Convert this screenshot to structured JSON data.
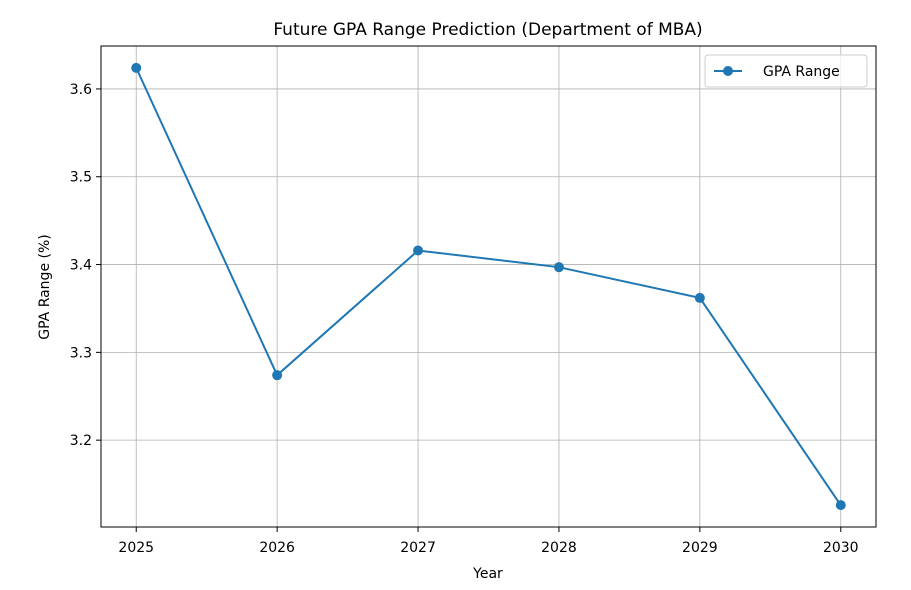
{
  "chart_data": {
    "type": "line",
    "title": "Future GPA Range Prediction (Department of MBA)",
    "xlabel": "Year",
    "ylabel": "GPA Range (%)",
    "x": [
      2025,
      2026,
      2027,
      2028,
      2029,
      2030
    ],
    "series": [
      {
        "name": "GPA Range",
        "values": [
          3.624,
          3.274,
          3.416,
          3.397,
          3.362,
          3.126
        ],
        "color": "#1f77b4",
        "marker": "circle"
      }
    ],
    "xticks": [
      "2025",
      "2026",
      "2027",
      "2028",
      "2029",
      "2030"
    ],
    "yticks": [
      "3.2",
      "3.3",
      "3.4",
      "3.5",
      "3.6"
    ],
    "ytick_values": [
      3.2,
      3.3,
      3.4,
      3.5,
      3.6
    ],
    "xlim": [
      2024.75,
      2030.25
    ],
    "ylim": [
      3.1011,
      3.6489
    ],
    "grid": true,
    "legend_position": "top-right"
  }
}
